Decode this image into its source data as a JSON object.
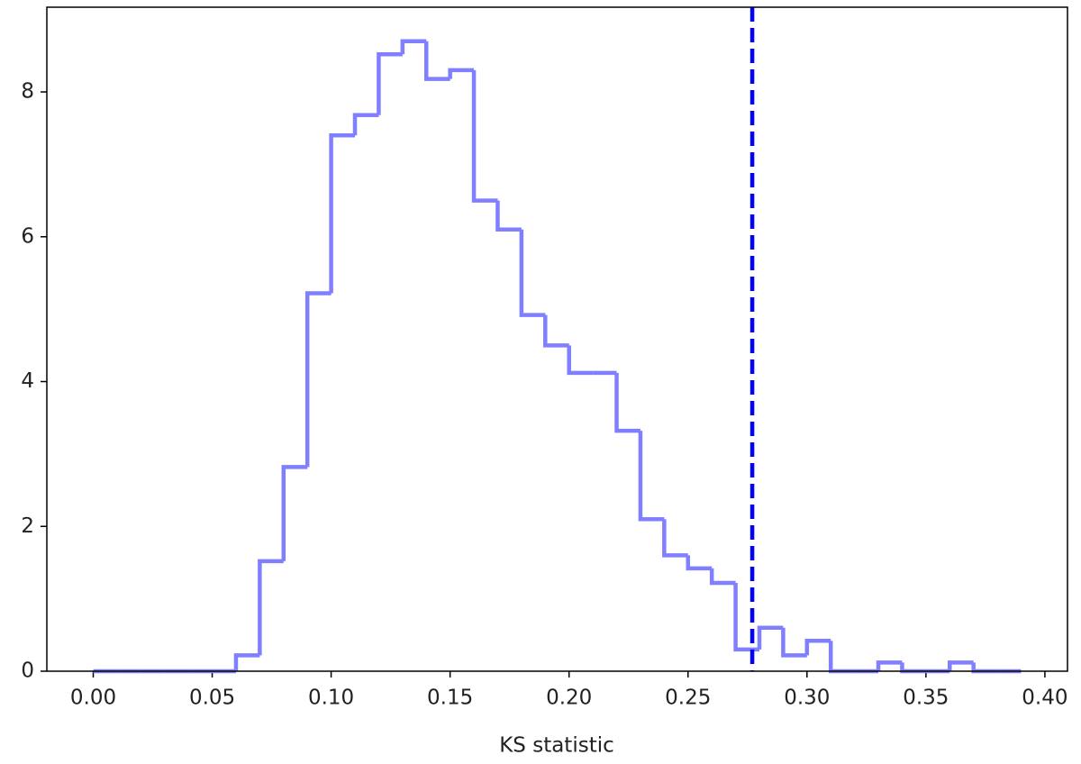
{
  "chart_data": {
    "type": "histogram",
    "xlabel": "KS statistic",
    "bins": [
      0.0,
      0.01,
      0.02,
      0.03,
      0.04,
      0.05,
      0.06,
      0.07,
      0.08,
      0.09,
      0.1,
      0.11,
      0.12,
      0.13,
      0.14,
      0.15,
      0.16,
      0.17,
      0.18,
      0.19,
      0.2,
      0.21,
      0.22,
      0.23,
      0.24,
      0.25,
      0.26,
      0.27,
      0.28,
      0.29,
      0.3,
      0.31,
      0.32,
      0.33,
      0.34,
      0.35,
      0.36,
      0.37,
      0.38,
      0.39
    ],
    "values": [
      0,
      0,
      0,
      0,
      0,
      0,
      0.22,
      1.52,
      2.82,
      5.22,
      7.4,
      7.68,
      8.52,
      8.7,
      8.18,
      8.3,
      6.5,
      6.1,
      4.92,
      4.5,
      4.12,
      4.12,
      3.32,
      2.1,
      1.6,
      1.42,
      1.22,
      0.3,
      0.6,
      0.22,
      0.42,
      0,
      0,
      0.12,
      0,
      0,
      0.12,
      0,
      0
    ],
    "color": "#7f7fff",
    "vline": {
      "x": 0.277,
      "color": "#0000ff",
      "style": "dashed"
    },
    "xlim": [
      -0.0195,
      0.4095
    ],
    "ylim": [
      0,
      9.17
    ],
    "xticks": [
      {
        "value": 0,
        "label": "0.00"
      },
      {
        "value": 0.05,
        "label": "0.05"
      },
      {
        "value": 0.1,
        "label": "0.10"
      },
      {
        "value": 0.15,
        "label": "0.15"
      },
      {
        "value": 0.2,
        "label": "0.20"
      },
      {
        "value": 0.25,
        "label": "0.25"
      },
      {
        "value": 0.3,
        "label": "0.30"
      },
      {
        "value": 0.35,
        "label": "0.35"
      },
      {
        "value": 0.4,
        "label": "0.40"
      }
    ],
    "yticks": [
      0,
      2,
      4,
      6,
      8
    ]
  }
}
